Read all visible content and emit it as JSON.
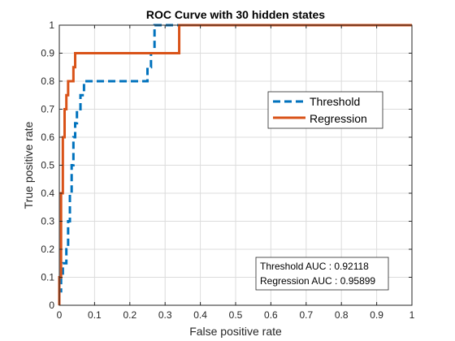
{
  "chart_data": {
    "type": "line",
    "title": "ROC Curve with 30 hidden states",
    "xlabel": "False positive rate",
    "ylabel": "True positive rate",
    "xlim": [
      0,
      1
    ],
    "ylim": [
      0,
      1
    ],
    "xticks": [
      "0",
      "0.1",
      "0.2",
      "0.3",
      "0.4",
      "0.5",
      "0.6",
      "0.7",
      "0.8",
      "0.9",
      "1"
    ],
    "yticks": [
      "0",
      "0.1",
      "0.2",
      "0.3",
      "0.4",
      "0.5",
      "0.6",
      "0.7",
      "0.8",
      "0.9",
      "1"
    ],
    "grid": true,
    "legend_position": "right-middle",
    "series": [
      {
        "name": "Threshold",
        "color": "#0072BD",
        "style": "dashed",
        "x": [
          0,
          0,
          0.005,
          0.005,
          0.01,
          0.01,
          0.02,
          0.02,
          0.025,
          0.025,
          0.03,
          0.03,
          0.035,
          0.035,
          0.04,
          0.04,
          0.045,
          0.045,
          0.05,
          0.05,
          0.06,
          0.06,
          0.07,
          0.07,
          0.08,
          0.08,
          0.25,
          0.25,
          0.26,
          0.26,
          0.27,
          0.27,
          1
        ],
        "y": [
          0,
          0.05,
          0.05,
          0.1,
          0.1,
          0.15,
          0.15,
          0.2,
          0.2,
          0.3,
          0.3,
          0.4,
          0.4,
          0.5,
          0.5,
          0.6,
          0.6,
          0.65,
          0.65,
          0.7,
          0.7,
          0.75,
          0.75,
          0.8,
          0.8,
          0.8,
          0.8,
          0.85,
          0.85,
          0.9,
          0.9,
          1,
          1
        ]
      },
      {
        "name": "Regression",
        "color": "#D95319",
        "style": "solid",
        "x": [
          0,
          0,
          0.005,
          0.005,
          0.01,
          0.01,
          0.015,
          0.015,
          0.02,
          0.02,
          0.025,
          0.025,
          0.04,
          0.04,
          0.045,
          0.045,
          0.05,
          0.05,
          0.34,
          0.34,
          1
        ],
        "y": [
          0,
          0.1,
          0.1,
          0.4,
          0.4,
          0.6,
          0.6,
          0.7,
          0.7,
          0.75,
          0.75,
          0.8,
          0.8,
          0.85,
          0.85,
          0.9,
          0.9,
          0.9,
          0.9,
          1,
          1
        ]
      }
    ],
    "annotations": [
      "Threshold AUC : 0.92118",
      "Regression AUC : 0.95899"
    ]
  }
}
